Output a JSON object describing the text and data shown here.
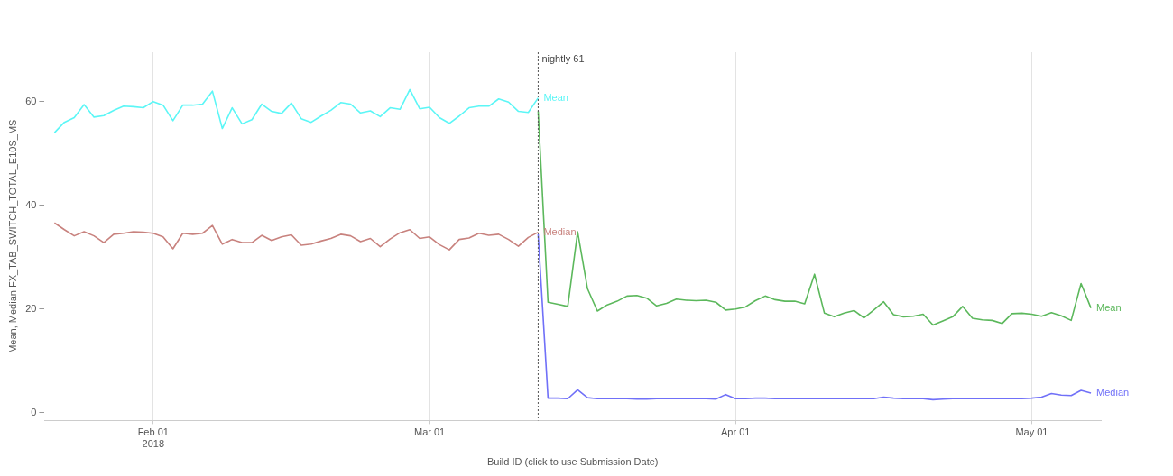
{
  "chart_data": {
    "type": "line",
    "xlabel": "Build ID (click to use Submission Date)",
    "ylabel": "Mean, Median FX_TAB_SWITCH_TOTAL_E10S_MS",
    "xlim": [
      "2018-01-21",
      "2018-05-08"
    ],
    "xticks": [
      {
        "value": "2018-02-01",
        "label": "Feb 01\n2018"
      },
      {
        "value": "2018-03-01",
        "label": "Mar 01"
      },
      {
        "value": "2018-04-01",
        "label": "Apr 01"
      },
      {
        "value": "2018-05-01",
        "label": "May 01"
      }
    ],
    "ylim": [
      -1.5,
      69.5
    ],
    "yticks": [
      0,
      20,
      40,
      60
    ],
    "grid": "x",
    "legend": false,
    "marker": "none",
    "line_style": "solid",
    "ref_lines": [
      {
        "axis": "x",
        "value": "2018-03-12",
        "label": "nightly 61",
        "color": "#555555",
        "line_style": "dotted"
      }
    ],
    "series": [
      {
        "name": "Mean",
        "color": "#5cf6f6",
        "x": [
          "2018-01-22",
          "2018-01-23",
          "2018-01-24",
          "2018-01-25",
          "2018-01-26",
          "2018-01-27",
          "2018-01-28",
          "2018-01-29",
          "2018-01-30",
          "2018-01-31",
          "2018-02-01",
          "2018-02-02",
          "2018-02-03",
          "2018-02-04",
          "2018-02-05",
          "2018-02-06",
          "2018-02-07",
          "2018-02-08",
          "2018-02-09",
          "2018-02-10",
          "2018-02-11",
          "2018-02-12",
          "2018-02-13",
          "2018-02-14",
          "2018-02-15",
          "2018-02-16",
          "2018-02-17",
          "2018-02-18",
          "2018-02-19",
          "2018-02-20",
          "2018-02-21",
          "2018-02-22",
          "2018-02-23",
          "2018-02-24",
          "2018-02-25",
          "2018-02-26",
          "2018-02-27",
          "2018-02-28",
          "2018-03-01",
          "2018-03-02",
          "2018-03-03",
          "2018-03-04",
          "2018-03-05",
          "2018-03-06",
          "2018-03-07",
          "2018-03-08",
          "2018-03-09",
          "2018-03-10",
          "2018-03-11",
          "2018-03-12"
        ],
        "values": [
          54.0,
          56.0,
          56.9,
          59.4,
          57.0,
          57.3,
          58.3,
          59.1,
          59.0,
          58.8,
          60.0,
          59.3,
          56.3,
          59.3,
          59.3,
          59.5,
          62.0,
          54.8,
          58.8,
          55.7,
          56.5,
          59.5,
          58.1,
          57.7,
          59.7,
          56.7,
          56.0,
          57.2,
          58.3,
          59.8,
          59.5,
          57.8,
          58.2,
          57.1,
          58.8,
          58.5,
          62.3,
          58.6,
          58.9,
          56.9,
          55.8,
          57.2,
          58.8,
          59.1,
          59.1,
          60.5,
          59.9,
          58.1,
          57.9,
          60.7
        ]
      },
      {
        "name": "Median",
        "color": "#c8827e",
        "x": [
          "2018-01-22",
          "2018-01-23",
          "2018-01-24",
          "2018-01-25",
          "2018-01-26",
          "2018-01-27",
          "2018-01-28",
          "2018-01-29",
          "2018-01-30",
          "2018-01-31",
          "2018-02-01",
          "2018-02-02",
          "2018-02-03",
          "2018-02-04",
          "2018-02-05",
          "2018-02-06",
          "2018-02-07",
          "2018-02-08",
          "2018-02-09",
          "2018-02-10",
          "2018-02-11",
          "2018-02-12",
          "2018-02-13",
          "2018-02-14",
          "2018-02-15",
          "2018-02-16",
          "2018-02-17",
          "2018-02-18",
          "2018-02-19",
          "2018-02-20",
          "2018-02-21",
          "2018-02-22",
          "2018-02-23",
          "2018-02-24",
          "2018-02-25",
          "2018-02-26",
          "2018-02-27",
          "2018-02-28",
          "2018-03-01",
          "2018-03-02",
          "2018-03-03",
          "2018-03-04",
          "2018-03-05",
          "2018-03-06",
          "2018-03-07",
          "2018-03-08",
          "2018-03-09",
          "2018-03-10",
          "2018-03-11",
          "2018-03-12"
        ],
        "values": [
          36.6,
          35.3,
          34.1,
          34.9,
          34.1,
          32.8,
          34.4,
          34.6,
          34.9,
          34.8,
          34.6,
          33.9,
          31.6,
          34.6,
          34.4,
          34.6,
          36.1,
          32.5,
          33.4,
          32.8,
          32.8,
          34.2,
          33.2,
          33.9,
          34.3,
          32.3,
          32.5,
          33.1,
          33.6,
          34.4,
          34.1,
          33.0,
          33.6,
          32.0,
          33.5,
          34.7,
          35.3,
          33.6,
          33.9,
          32.4,
          31.4,
          33.4,
          33.7,
          34.6,
          34.2,
          34.4,
          33.4,
          32.1,
          33.8,
          34.8
        ]
      },
      {
        "name": "Mean",
        "color": "#5cb85c",
        "x": [
          "2018-03-12",
          "2018-03-13",
          "2018-03-14",
          "2018-03-15",
          "2018-03-16",
          "2018-03-17",
          "2018-03-18",
          "2018-03-19",
          "2018-03-20",
          "2018-03-21",
          "2018-03-22",
          "2018-03-23",
          "2018-03-24",
          "2018-03-25",
          "2018-03-26",
          "2018-03-27",
          "2018-03-28",
          "2018-03-29",
          "2018-03-30",
          "2018-03-31",
          "2018-04-01",
          "2018-04-02",
          "2018-04-03",
          "2018-04-04",
          "2018-04-05",
          "2018-04-06",
          "2018-04-07",
          "2018-04-08",
          "2018-04-09",
          "2018-04-10",
          "2018-04-11",
          "2018-04-12",
          "2018-04-13",
          "2018-04-14",
          "2018-04-15",
          "2018-04-16",
          "2018-04-17",
          "2018-04-18",
          "2018-04-19",
          "2018-04-20",
          "2018-04-21",
          "2018-04-22",
          "2018-04-23",
          "2018-04-24",
          "2018-04-25",
          "2018-04-26",
          "2018-04-27",
          "2018-04-28",
          "2018-04-29",
          "2018-04-30",
          "2018-05-01",
          "2018-05-02",
          "2018-05-03",
          "2018-05-04",
          "2018-05-05",
          "2018-05-06",
          "2018-05-07"
        ],
        "values": [
          58.1,
          21.3,
          20.9,
          20.5,
          34.9,
          23.9,
          19.6,
          20.8,
          21.5,
          22.5,
          22.6,
          22.1,
          20.6,
          21.1,
          21.9,
          21.7,
          21.6,
          21.7,
          21.3,
          19.8,
          20.0,
          20.4,
          21.6,
          22.5,
          21.8,
          21.5,
          21.5,
          21.0,
          26.7,
          19.2,
          18.5,
          19.2,
          19.7,
          18.3,
          19.8,
          21.4,
          18.9,
          18.5,
          18.6,
          19.0,
          16.9,
          17.7,
          18.5,
          20.5,
          18.2,
          17.9,
          17.8,
          17.2,
          19.1,
          19.2,
          19.0,
          18.6,
          19.3,
          18.7,
          17.8,
          24.9,
          20.2
        ]
      },
      {
        "name": "Median",
        "color": "#7070f8",
        "x": [
          "2018-03-12",
          "2018-03-13",
          "2018-03-14",
          "2018-03-15",
          "2018-03-16",
          "2018-03-17",
          "2018-03-18",
          "2018-03-19",
          "2018-03-20",
          "2018-03-21",
          "2018-03-22",
          "2018-03-23",
          "2018-03-24",
          "2018-03-25",
          "2018-03-26",
          "2018-03-27",
          "2018-03-28",
          "2018-03-29",
          "2018-03-30",
          "2018-03-31",
          "2018-04-01",
          "2018-04-02",
          "2018-04-03",
          "2018-04-04",
          "2018-04-05",
          "2018-04-06",
          "2018-04-07",
          "2018-04-08",
          "2018-04-09",
          "2018-04-10",
          "2018-04-11",
          "2018-04-12",
          "2018-04-13",
          "2018-04-14",
          "2018-04-15",
          "2018-04-16",
          "2018-04-17",
          "2018-04-18",
          "2018-04-19",
          "2018-04-20",
          "2018-04-21",
          "2018-04-22",
          "2018-04-23",
          "2018-04-24",
          "2018-04-25",
          "2018-04-26",
          "2018-04-27",
          "2018-04-28",
          "2018-04-29",
          "2018-04-30",
          "2018-05-01",
          "2018-05-02",
          "2018-05-03",
          "2018-05-04",
          "2018-05-05",
          "2018-05-06",
          "2018-05-07"
        ],
        "values": [
          34.4,
          2.8,
          2.8,
          2.7,
          4.4,
          2.9,
          2.7,
          2.7,
          2.7,
          2.7,
          2.6,
          2.6,
          2.7,
          2.7,
          2.7,
          2.7,
          2.7,
          2.7,
          2.6,
          3.5,
          2.7,
          2.7,
          2.8,
          2.8,
          2.7,
          2.7,
          2.7,
          2.7,
          2.7,
          2.7,
          2.7,
          2.7,
          2.7,
          2.7,
          2.7,
          3.0,
          2.8,
          2.7,
          2.7,
          2.7,
          2.5,
          2.6,
          2.7,
          2.7,
          2.7,
          2.7,
          2.7,
          2.7,
          2.7,
          2.7,
          2.8,
          3.0,
          3.7,
          3.4,
          3.3,
          4.3,
          3.8
        ]
      }
    ]
  }
}
